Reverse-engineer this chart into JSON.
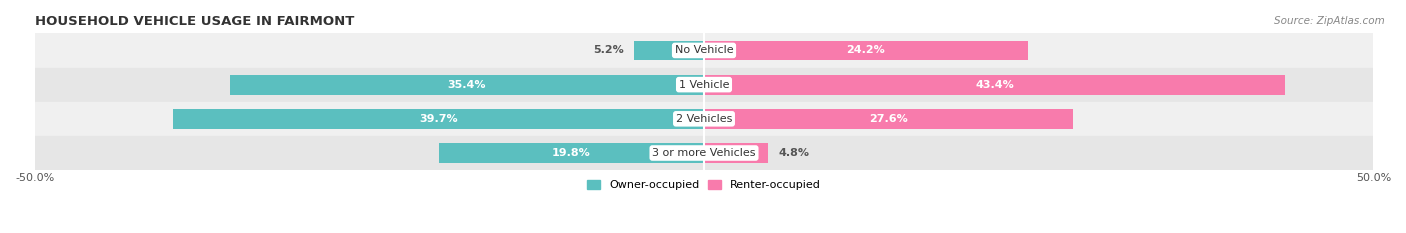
{
  "title": "HOUSEHOLD VEHICLE USAGE IN FAIRMONT",
  "source": "Source: ZipAtlas.com",
  "categories": [
    "No Vehicle",
    "1 Vehicle",
    "2 Vehicles",
    "3 or more Vehicles"
  ],
  "owner_values": [
    5.2,
    35.4,
    39.7,
    19.8
  ],
  "renter_values": [
    24.2,
    43.4,
    27.6,
    4.8
  ],
  "owner_color": "#5BBFBF",
  "renter_color": "#F87BAC",
  "row_bg_colors": [
    "#F0F0F0",
    "#E6E6E6",
    "#F0F0F0",
    "#E6E6E6"
  ],
  "xlim": [
    -50,
    50
  ],
  "xtick_labels": [
    "-50.0%",
    "50.0%"
  ],
  "legend_owner": "Owner-occupied",
  "legend_renter": "Renter-occupied",
  "title_fontsize": 9.5,
  "source_fontsize": 7.5,
  "label_fontsize": 8,
  "bar_height": 0.58,
  "inside_label_threshold": 15,
  "figsize": [
    14.06,
    2.33
  ],
  "dpi": 100
}
